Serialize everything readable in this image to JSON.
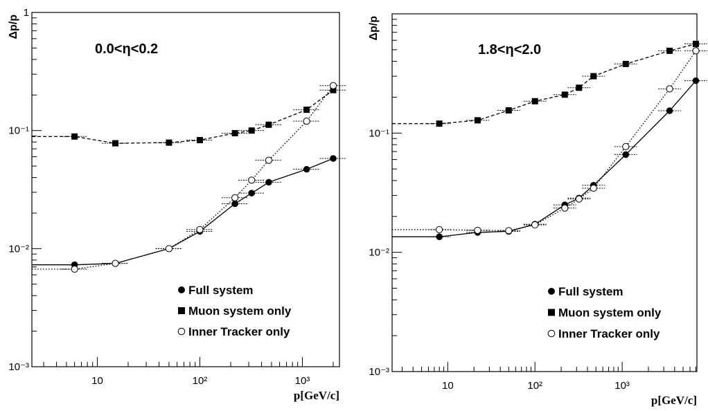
{
  "chart_data": [
    {
      "type": "line",
      "annotation": "0.0<η<0.2",
      "xlabel": "p[GeV/c]",
      "ylabel": "Δp/p",
      "xscale": "log",
      "yscale": "log",
      "xlim": [
        2.3,
        2300
      ],
      "ylim": [
        0.001,
        1
      ],
      "x_ticks": [
        {
          "value": 10,
          "label": "10"
        },
        {
          "value": 100,
          "label": "10²"
        },
        {
          "value": 1000,
          "label": "10³"
        }
      ],
      "y_ticks": [
        {
          "value": 0.001,
          "label": "10⁻³"
        },
        {
          "value": 0.01,
          "label": "10⁻²"
        },
        {
          "value": 0.1,
          "label": "10⁻¹"
        },
        {
          "value": 1,
          "label": "1"
        }
      ],
      "legend": {
        "placement": "bottom-right",
        "entries": [
          "Full system",
          "Muon system only",
          "Inner Tracker only"
        ]
      },
      "series": [
        {
          "name": "Full system",
          "marker": "filled-circle",
          "line": "solid",
          "x": [
            6,
            15,
            50,
            100,
            220,
            320,
            470,
            1100,
            2000
          ],
          "y": [
            0.0073,
            0.0075,
            0.01,
            0.014,
            0.024,
            0.0295,
            0.0365,
            0.047,
            0.058
          ]
        },
        {
          "name": "Muon system only",
          "marker": "filled-square",
          "line": "dashed",
          "x": [
            6,
            15,
            50,
            100,
            220,
            320,
            470,
            1100,
            2000
          ],
          "y": [
            0.089,
            0.078,
            0.079,
            0.083,
            0.095,
            0.1,
            0.112,
            0.15,
            0.22
          ]
        },
        {
          "name": "Inner Tracker only",
          "marker": "open-circle",
          "line": "dotted",
          "x": [
            6,
            15,
            50,
            100,
            220,
            320,
            470,
            1100,
            2000
          ],
          "y": [
            0.0067,
            0.0075,
            0.01,
            0.0145,
            0.027,
            0.038,
            0.056,
            0.12,
            0.24
          ]
        }
      ]
    },
    {
      "type": "line",
      "annotation": "1.8<η<2.0",
      "xlabel": "p[GeV/c]",
      "ylabel": "Δp/p",
      "xscale": "log",
      "yscale": "log",
      "xlim": [
        2.3,
        7200
      ],
      "ylim": [
        0.001,
        1
      ],
      "x_ticks": [
        {
          "value": 10,
          "label": "10"
        },
        {
          "value": 100,
          "label": "10²"
        },
        {
          "value": 1000,
          "label": "10³"
        }
      ],
      "y_ticks": [
        {
          "value": 0.001,
          "label": "10⁻³"
        },
        {
          "value": 0.01,
          "label": "10⁻²"
        },
        {
          "value": 0.1,
          "label": "10⁻¹"
        }
      ],
      "legend": {
        "placement": "bottom-right",
        "entries": [
          "Full system",
          "Muon system only",
          "Inner Tracker only"
        ]
      },
      "series": [
        {
          "name": "Full system",
          "marker": "filled-circle",
          "line": "solid",
          "x": [
            8,
            22,
            50,
            100,
            220,
            320,
            470,
            1100,
            3500,
            7000
          ],
          "y": [
            0.0135,
            0.0147,
            0.015,
            0.0172,
            0.025,
            0.0285,
            0.0365,
            0.066,
            0.154,
            0.275
          ]
        },
        {
          "name": "Muon system only",
          "marker": "filled-square",
          "line": "dashed",
          "x": [
            8,
            22,
            50,
            100,
            220,
            320,
            470,
            1100,
            3500,
            7000
          ],
          "y": [
            0.12,
            0.128,
            0.155,
            0.185,
            0.21,
            0.24,
            0.3,
            0.38,
            0.49,
            0.56
          ]
        },
        {
          "name": "Inner Tracker only",
          "marker": "open-circle",
          "line": "dotted",
          "x": [
            8,
            22,
            50,
            100,
            220,
            320,
            470,
            1100,
            3500,
            7000
          ],
          "y": [
            0.0155,
            0.0153,
            0.0152,
            0.017,
            0.0235,
            0.028,
            0.0345,
            0.077,
            0.235,
            0.49
          ]
        }
      ]
    }
  ]
}
